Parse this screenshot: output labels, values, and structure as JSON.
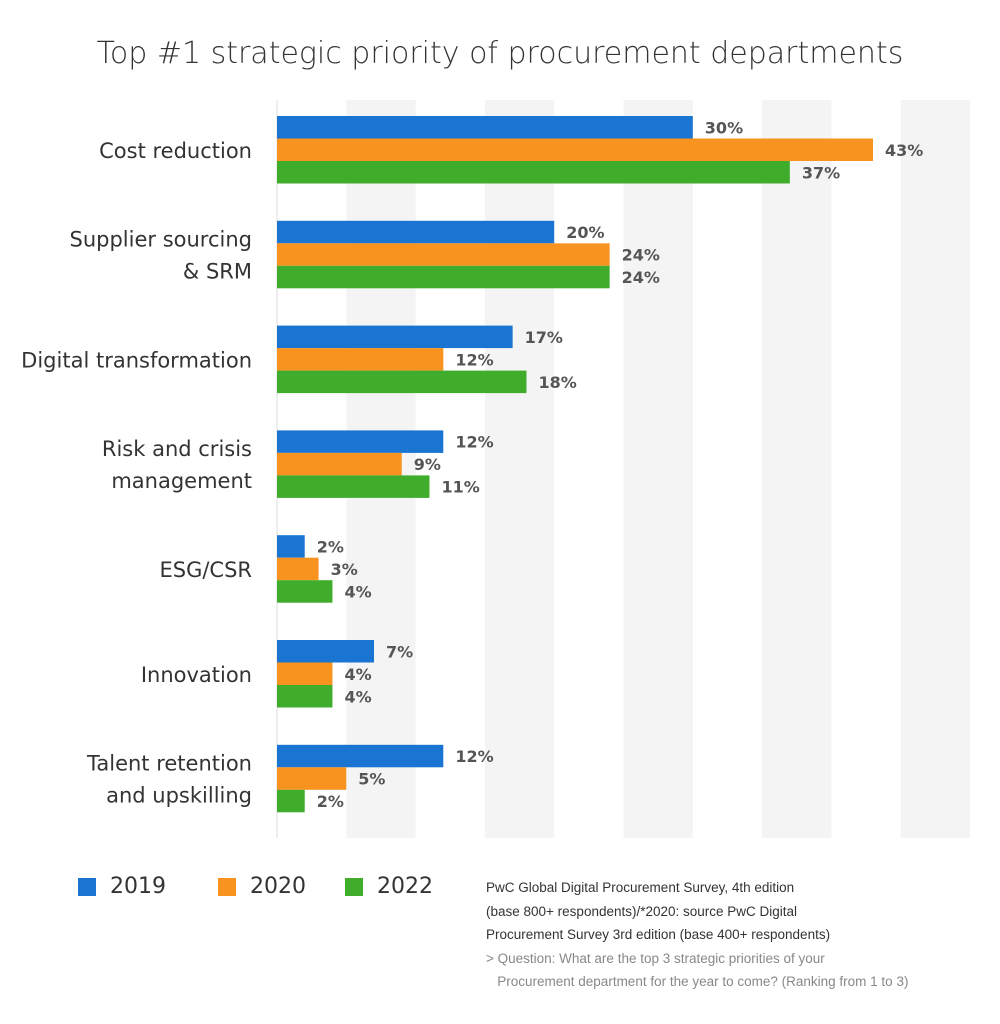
{
  "chart_data": {
    "type": "bar",
    "orientation": "horizontal",
    "title": "Top #1 strategic priority of procurement departments",
    "categories": [
      [
        "Cost reduction"
      ],
      [
        "Supplier sourcing",
        "& SRM"
      ],
      [
        "Digital transformation"
      ],
      [
        "Risk and crisis",
        "management"
      ],
      [
        "ESG/CSR"
      ],
      [
        "Innovation"
      ],
      [
        "Talent retention",
        "and upskilling"
      ]
    ],
    "series": [
      {
        "name": "2019",
        "color": "#1a75d2",
        "values": [
          30,
          20,
          17,
          12,
          2,
          7,
          12
        ]
      },
      {
        "name": "2020",
        "color": "#f7931e",
        "values": [
          43,
          24,
          12,
          9,
          3,
          4,
          5
        ]
      },
      {
        "name": "2022",
        "color": "#3fad2b",
        "values": [
          37,
          24,
          18,
          11,
          4,
          4,
          2
        ]
      }
    ],
    "unit": "%",
    "xlim": [
      0,
      50
    ],
    "grid": "alternating vertical bands every 5%",
    "legend": "bottom-left"
  },
  "notes": {
    "source_lines": [
      "PwC Global Digital Procurement Survey, 4th edition",
      "(base 800+ respondents)/*2020: source PwC Digital",
      "Procurement Survey 3rd edition (base 400+ respondents)"
    ],
    "question_lines": [
      "> Question: What are the top 3 strategic priorities of your",
      "   Procurement department for the year to come? (Ranking from 1 to 3)"
    ]
  }
}
